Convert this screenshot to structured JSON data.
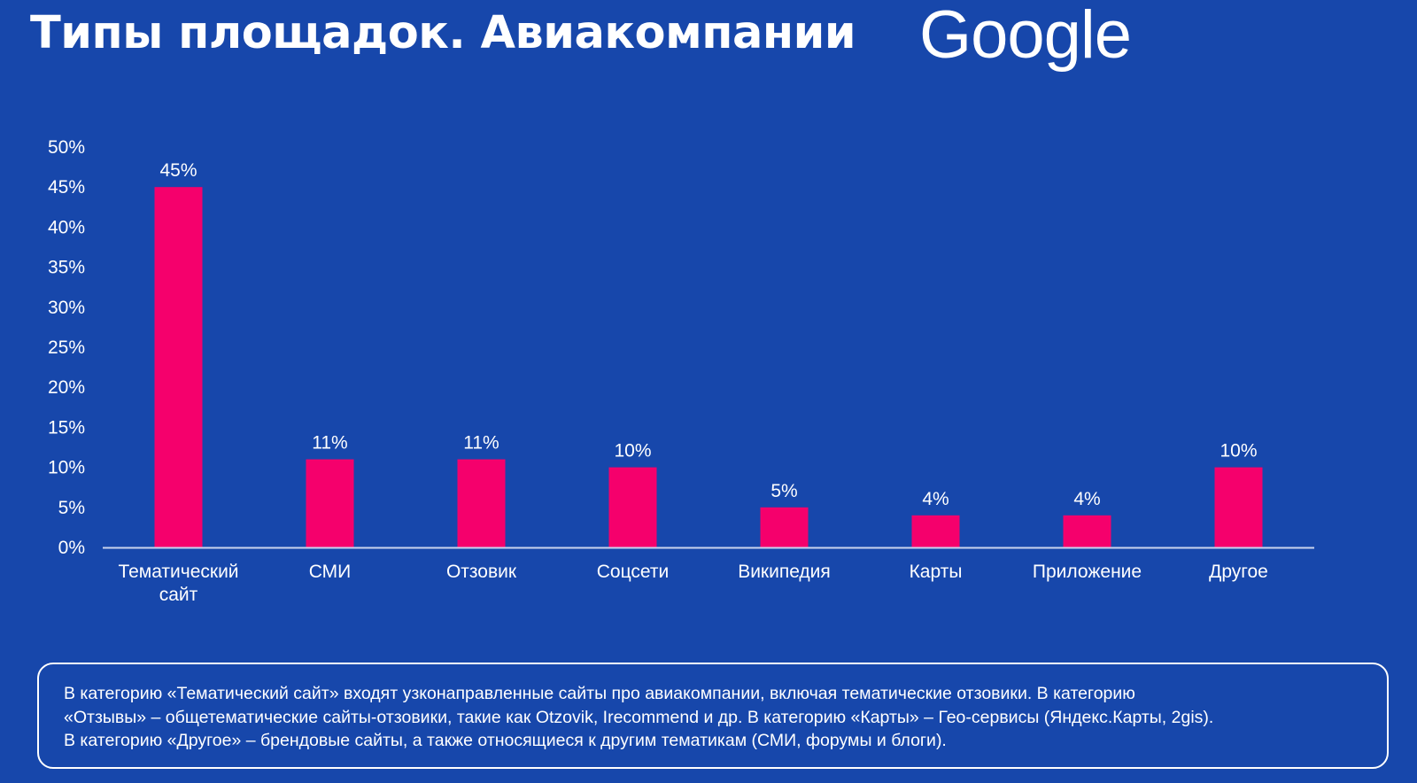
{
  "title": "Типы площадок. Авиакомпании",
  "logo_text": "Google",
  "colors": {
    "background": "#1747ab",
    "bar": "#f5006c",
    "text": "#ffffff"
  },
  "chart_data": {
    "type": "bar",
    "categories": [
      [
        "Тематический",
        "сайт"
      ],
      [
        "СМИ"
      ],
      [
        "Отзовик"
      ],
      [
        "Соцсети"
      ],
      [
        "Википедия"
      ],
      [
        "Карты"
      ],
      [
        "Приложение"
      ],
      [
        "Другое"
      ]
    ],
    "values": [
      45,
      11,
      11,
      10,
      5,
      4,
      4,
      10
    ],
    "data_labels": [
      "45%",
      "11%",
      "11%",
      "10%",
      "5%",
      "4%",
      "4%",
      "10%"
    ],
    "y_ticks": [
      0,
      5,
      10,
      15,
      20,
      25,
      30,
      35,
      40,
      45,
      50
    ],
    "y_tick_labels": [
      "0%",
      "5%",
      "10%",
      "15%",
      "20%",
      "25%",
      "30%",
      "35%",
      "40%",
      "45%",
      "50%"
    ],
    "ylim": [
      0,
      50
    ],
    "grid": false,
    "legend": "none"
  },
  "note": {
    "lines": [
      "В категорию «Тематический сайт» входят узконаправленные сайты про авиакомпании, включая тематические отзовики. В категорию",
      "«Отзывы» – общетематические сайты-отзовики, такие как Otzovik, Irecommend и др. В категорию «Карты» – Гео-сервисы (Яндекс.Карты, 2gis).",
      "В категорию «Другое» – брендовые сайты, а также относящиеся к другим тематикам (СМИ, форумы и блоги)."
    ]
  }
}
